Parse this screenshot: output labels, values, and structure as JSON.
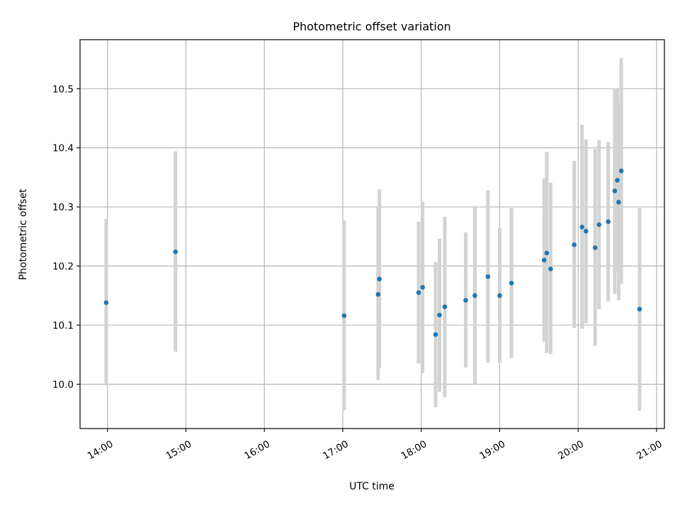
{
  "chart_data": {
    "type": "scatter",
    "title": "Photometric offset variation",
    "xlabel": "UTC time",
    "ylabel": "Photometric offset",
    "xlim": [
      "13:39",
      "21:06"
    ],
    "ylim": [
      9.925,
      10.583
    ],
    "x_ticks": [
      "14:00",
      "15:00",
      "16:00",
      "17:00",
      "18:00",
      "19:00",
      "20:00",
      "21:00"
    ],
    "y_ticks": [
      "10.0",
      "10.1",
      "10.2",
      "10.3",
      "10.4",
      "10.5"
    ],
    "grid": true,
    "point_color": "#1f77b4",
    "errorbar_color": "#d3d3d3",
    "points": [
      {
        "x": "13:59",
        "y": 10.138,
        "ylow": 9.998,
        "yhigh": 10.28
      },
      {
        "x": "14:52",
        "y": 10.224,
        "ylow": 10.055,
        "yhigh": 10.394
      },
      {
        "x": "17:01",
        "y": 10.116,
        "ylow": 9.956,
        "yhigh": 10.277
      },
      {
        "x": "17:27",
        "y": 10.152,
        "ylow": 10.007,
        "yhigh": 10.299
      },
      {
        "x": "17:28",
        "y": 10.178,
        "ylow": 10.028,
        "yhigh": 10.33
      },
      {
        "x": "17:58",
        "y": 10.155,
        "ylow": 10.035,
        "yhigh": 10.275
      },
      {
        "x": "18:01",
        "y": 10.164,
        "ylow": 10.019,
        "yhigh": 10.309
      },
      {
        "x": "18:11",
        "y": 10.084,
        "ylow": 9.961,
        "yhigh": 10.207
      },
      {
        "x": "18:14",
        "y": 10.117,
        "ylow": 9.987,
        "yhigh": 10.246
      },
      {
        "x": "18:18",
        "y": 10.131,
        "ylow": 9.978,
        "yhigh": 10.283
      },
      {
        "x": "18:34",
        "y": 10.142,
        "ylow": 10.028,
        "yhigh": 10.257
      },
      {
        "x": "18:41",
        "y": 10.15,
        "ylow": 10.0,
        "yhigh": 10.299
      },
      {
        "x": "18:51",
        "y": 10.182,
        "ylow": 10.036,
        "yhigh": 10.328
      },
      {
        "x": "19:00",
        "y": 10.15,
        "ylow": 10.036,
        "yhigh": 10.264
      },
      {
        "x": "19:09",
        "y": 10.171,
        "ylow": 10.044,
        "yhigh": 10.298
      },
      {
        "x": "19:34",
        "y": 10.21,
        "ylow": 10.072,
        "yhigh": 10.348
      },
      {
        "x": "19:36",
        "y": 10.222,
        "ylow": 10.053,
        "yhigh": 10.393
      },
      {
        "x": "19:39",
        "y": 10.195,
        "ylow": 10.051,
        "yhigh": 10.341
      },
      {
        "x": "19:57",
        "y": 10.236,
        "ylow": 10.095,
        "yhigh": 10.378
      },
      {
        "x": "20:03",
        "y": 10.266,
        "ylow": 10.094,
        "yhigh": 10.439
      },
      {
        "x": "20:06",
        "y": 10.259,
        "ylow": 10.103,
        "yhigh": 10.414
      },
      {
        "x": "20:13",
        "y": 10.231,
        "ylow": 10.065,
        "yhigh": 10.398
      },
      {
        "x": "20:16",
        "y": 10.27,
        "ylow": 10.127,
        "yhigh": 10.413
      },
      {
        "x": "20:23",
        "y": 10.275,
        "ylow": 10.14,
        "yhigh": 10.41
      },
      {
        "x": "20:28",
        "y": 10.327,
        "ylow": 10.153,
        "yhigh": 10.5
      },
      {
        "x": "20:30",
        "y": 10.345,
        "ylow": 10.19,
        "yhigh": 10.499
      },
      {
        "x": "20:31",
        "y": 10.308,
        "ylow": 10.142,
        "yhigh": 10.475
      },
      {
        "x": "20:33",
        "y": 10.361,
        "ylow": 10.17,
        "yhigh": 10.552
      },
      {
        "x": "20:47",
        "y": 10.127,
        "ylow": 9.955,
        "yhigh": 10.298
      }
    ]
  }
}
